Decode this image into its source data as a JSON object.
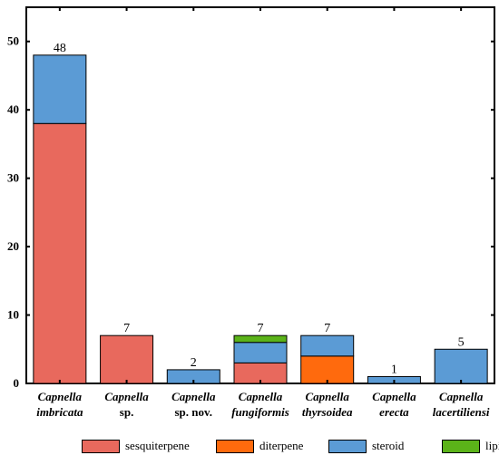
{
  "chart_data": {
    "type": "bar",
    "stacked": true,
    "title": "",
    "xlabel": "",
    "ylabel": "",
    "ylim": [
      0,
      55
    ],
    "yticks": [
      0,
      10,
      20,
      30,
      40,
      50
    ],
    "grid": false,
    "legend_position": "bottom",
    "categories": [
      {
        "line1": "Capnella",
        "line2": "imbricata",
        "line1_italic": true,
        "line2_italic": true
      },
      {
        "line1": "Capnella",
        "line2": "sp.",
        "line1_italic": true,
        "line2_italic": false
      },
      {
        "line1": "Capnella",
        "line2": "sp. nov.",
        "line1_italic": true,
        "line2_italic": false
      },
      {
        "line1": "Capnella",
        "line2": "fungiformis",
        "line1_italic": true,
        "line2_italic": true
      },
      {
        "line1": "Capnella",
        "line2": "thyrsoidea",
        "line1_italic": true,
        "line2_italic": true
      },
      {
        "line1": "Capnella",
        "line2": "erecta",
        "line1_italic": true,
        "line2_italic": true
      },
      {
        "line1": "Capnella",
        "line2": "lacertiliensi",
        "line1_italic": true,
        "line2_italic": true
      }
    ],
    "series": [
      {
        "name": "sesquiterpene",
        "color": "#e8695d",
        "values": [
          38,
          7,
          0,
          3,
          0,
          0,
          0
        ]
      },
      {
        "name": "diterpene",
        "color": "#ff6a0d",
        "values": [
          0,
          0,
          0,
          0,
          4,
          0,
          0
        ]
      },
      {
        "name": "steroid",
        "color": "#5b9bd5",
        "values": [
          10,
          0,
          2,
          3,
          3,
          1,
          5
        ]
      },
      {
        "name": "lipid",
        "color": "#5bb319",
        "values": [
          0,
          0,
          0,
          1,
          0,
          0,
          0
        ]
      }
    ],
    "totals": [
      48,
      7,
      2,
      7,
      7,
      1,
      5
    ]
  }
}
